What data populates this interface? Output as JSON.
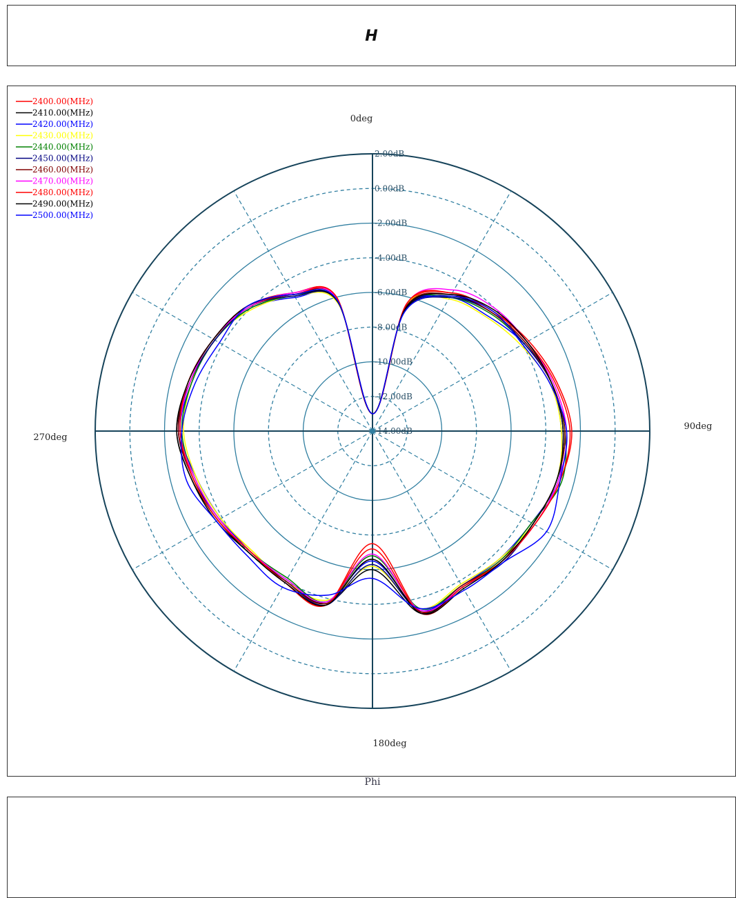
{
  "header": {
    "title": "H"
  },
  "chart_data": {
    "type": "polar-line",
    "title": "H",
    "xlabel": "Phi",
    "angle_labels": [
      {
        "angle": 0,
        "text": "0deg"
      },
      {
        "angle": 90,
        "text": "90deg"
      },
      {
        "angle": 180,
        "text": "180deg"
      },
      {
        "angle": 270,
        "text": "270deg"
      }
    ],
    "radial_range_db": [
      -14,
      2
    ],
    "radial_ticks": [
      "2.00dB",
      "0.00dB",
      "-2.00dB",
      "-4.00dB",
      "-6.00dB",
      "-8.00dB",
      "-10.00dB",
      "-12.00dB",
      "-14.00dB"
    ],
    "radial_tick_values": [
      2,
      0,
      -2,
      -4,
      -6,
      -8,
      -10,
      -12,
      -14
    ],
    "grid": true,
    "legend_position": "top-left",
    "angles_deg": [
      0,
      15,
      30,
      45,
      60,
      75,
      90,
      105,
      120,
      135,
      150,
      165,
      180,
      195,
      210,
      225,
      240,
      255,
      270,
      285,
      300,
      315,
      330,
      345
    ],
    "series": [
      {
        "name": "2400.00(MHz)",
        "color": "#ff0000",
        "values": [
          -13,
          -6.5,
          -4.8,
          -4.2,
          -3.6,
          -3.0,
          -2.5,
          -2.8,
          -3.2,
          -3.5,
          -3.6,
          -3.2,
          -7.5,
          -3.6,
          -3.9,
          -4.2,
          -3.8,
          -3.4,
          -2.8,
          -3.0,
          -3.4,
          -3.8,
          -4.8,
          -6.0
        ]
      },
      {
        "name": "2410.00(MHz)",
        "color": "#000000",
        "values": [
          -13,
          -6.8,
          -5.0,
          -4.3,
          -3.8,
          -3.3,
          -2.9,
          -3.0,
          -3.3,
          -3.4,
          -3.6,
          -3.1,
          -6.0,
          -3.7,
          -4.0,
          -4.0,
          -3.7,
          -3.2,
          -2.7,
          -3.1,
          -3.5,
          -3.9,
          -4.9,
          -6.3
        ]
      },
      {
        "name": "2420.00(MHz)",
        "color": "#0000ff",
        "values": [
          -13,
          -6.7,
          -5.1,
          -4.6,
          -3.9,
          -3.3,
          -3.1,
          -2.9,
          -3.4,
          -3.6,
          -3.7,
          -3.3,
          -6.5,
          -3.8,
          -4.1,
          -4.1,
          -3.9,
          -3.5,
          -2.9,
          -3.2,
          -3.5,
          -4.0,
          -5.1,
          -6.2
        ]
      },
      {
        "name": "2430.00(MHz)",
        "color": "#ffff00",
        "values": [
          -13,
          -6.5,
          -5.2,
          -4.7,
          -4.1,
          -3.4,
          -3.1,
          -3.0,
          -3.3,
          -3.6,
          -3.8,
          -3.4,
          -6.2,
          -3.9,
          -4.0,
          -4.2,
          -3.9,
          -3.5,
          -3.1,
          -3.2,
          -3.4,
          -4.1,
          -5.0,
          -6.4
        ]
      },
      {
        "name": "2440.00(MHz)",
        "color": "#008000",
        "values": [
          -13,
          -6.6,
          -5.1,
          -4.4,
          -3.9,
          -3.3,
          -2.9,
          -2.7,
          -3.4,
          -3.5,
          -3.7,
          -3.4,
          -6.8,
          -3.8,
          -4.2,
          -4.1,
          -3.8,
          -3.4,
          -3.0,
          -3.2,
          -3.5,
          -4.0,
          -5.0,
          -6.2
        ]
      },
      {
        "name": "2450.00(MHz)",
        "color": "#000080",
        "values": [
          -13,
          -6.9,
          -5.1,
          -4.3,
          -3.9,
          -3.3,
          -3.0,
          -3.0,
          -3.3,
          -3.3,
          -3.6,
          -3.2,
          -6.3,
          -3.6,
          -4.0,
          -4.1,
          -3.8,
          -3.3,
          -2.8,
          -3.1,
          -3.5,
          -3.9,
          -5.0,
          -6.3
        ]
      },
      {
        "name": "2460.00(MHz)",
        "color": "#800000",
        "values": [
          -13,
          -6.6,
          -4.9,
          -4.3,
          -3.8,
          -3.3,
          -2.9,
          -3.0,
          -3.3,
          -3.4,
          -3.7,
          -3.2,
          -6.6,
          -3.7,
          -4.0,
          -4.1,
          -3.7,
          -3.3,
          -2.8,
          -3.0,
          -3.4,
          -3.9,
          -4.9,
          -6.1
        ]
      },
      {
        "name": "2470.00(MHz)",
        "color": "#ff00ff",
        "values": [
          -13,
          -6.4,
          -4.6,
          -4.0,
          -3.7,
          -3.2,
          -2.8,
          -2.9,
          -3.2,
          -3.4,
          -3.6,
          -3.3,
          -6.9,
          -3.8,
          -4.1,
          -4.1,
          -3.8,
          -3.4,
          -2.9,
          -3.1,
          -3.4,
          -3.9,
          -4.8,
          -6.1
        ]
      },
      {
        "name": "2480.00(MHz)",
        "color": "#ff0000",
        "values": [
          -13,
          -6.4,
          -4.8,
          -4.2,
          -3.7,
          -3.1,
          -2.6,
          -2.8,
          -3.2,
          -3.4,
          -3.6,
          -3.1,
          -7.2,
          -3.6,
          -3.9,
          -4.1,
          -3.7,
          -3.3,
          -2.9,
          -3.0,
          -3.4,
          -3.8,
          -4.9,
          -6.0
        ]
      },
      {
        "name": "2490.00(MHz)",
        "color": "#000000",
        "values": [
          -13,
          -6.7,
          -4.9,
          -4.1,
          -3.7,
          -3.3,
          -3.0,
          -3.0,
          -3.3,
          -3.4,
          -3.5,
          -3.1,
          -6.6,
          -3.6,
          -3.9,
          -4.0,
          -3.6,
          -3.2,
          -2.7,
          -3.0,
          -3.4,
          -3.8,
          -4.9,
          -6.3
        ]
      },
      {
        "name": "2500.00(MHz)",
        "color": "#0000ff",
        "values": [
          -13,
          -6.9,
          -5.0,
          -4.2,
          -4.0,
          -3.4,
          -2.8,
          -2.8,
          -2.4,
          -3.3,
          -3.4,
          -3.4,
          -5.5,
          -4.2,
          -3.6,
          -3.8,
          -3.6,
          -2.9,
          -3.0,
          -3.4,
          -3.8,
          -3.8,
          -4.9,
          -6.2
        ]
      }
    ]
  }
}
